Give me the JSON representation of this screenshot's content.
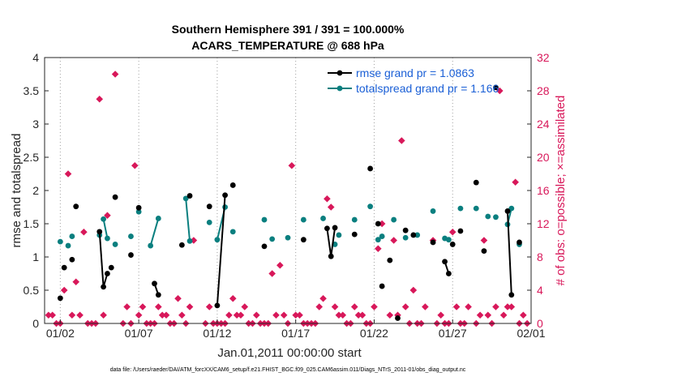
{
  "chart_data": {
    "type": "line",
    "title_line1": "Southern Hemisphere 391 / 391 = 100.000%",
    "title_line2": "ACARS_TEMPERATURE @ 688 hPa",
    "xlabel": "Jan.01,2011 00:00:00 start",
    "ylabel_left": "rmse and totalspread",
    "ylabel_right": "# of obs: o=possible; ×=assimilated",
    "footer": "data file: /Users/raeder/DAI/ATM_forcXX/CAM6_setup/f.e21.FHIST_BGC.f09_025.CAM6assim.011/Diags_NTrS_2011-01/obs_diag_output.nc",
    "xlim": [
      1,
      32
    ],
    "ylim_left": [
      0,
      4
    ],
    "ylim_right": [
      0,
      32
    ],
    "xticks": [
      2,
      7,
      12,
      17,
      22,
      27,
      32
    ],
    "xtick_labels": [
      "01/02",
      "01/07",
      "01/12",
      "01/17",
      "01/22",
      "01/27",
      "02/01"
    ],
    "yticks_left": [
      0,
      0.5,
      1,
      1.5,
      2,
      2.5,
      3,
      3.5,
      4
    ],
    "ytick_labels_left": [
      "0",
      "0.5",
      "1",
      "1.5",
      "2",
      "2.5",
      "3",
      "3.5",
      "4"
    ],
    "yticks_right": [
      0,
      4,
      8,
      12,
      16,
      20,
      24,
      28,
      32
    ],
    "ytick_labels_right": [
      "0",
      "4",
      "8",
      "12",
      "16",
      "20",
      "24",
      "28",
      "32"
    ],
    "colors": {
      "rmse": "#000000",
      "spread": "#0a7f7f",
      "obs": "#d8185a",
      "legend_text": "#1a5fd6"
    },
    "series": [
      {
        "name": "rmse grand pr = 1.0863",
        "points": [
          [
            2.0,
            0.38
          ],
          [
            2.25,
            0.84
          ],
          [
            2.75,
            0.96
          ],
          [
            3.0,
            1.76
          ],
          [
            4.5,
            1.38
          ],
          [
            4.75,
            0.55
          ],
          [
            5.0,
            0.75
          ],
          [
            5.25,
            0.84
          ],
          [
            5.5,
            1.9
          ],
          [
            6.5,
            1.03
          ],
          [
            7.0,
            1.74
          ],
          [
            8.0,
            0.6
          ],
          [
            8.25,
            0.43
          ],
          [
            9.75,
            1.18
          ],
          [
            10.25,
            1.92
          ],
          [
            11.5,
            1.76
          ],
          [
            12.0,
            0.27
          ],
          [
            12.5,
            1.93
          ],
          [
            13.0,
            2.08
          ],
          [
            15.0,
            1.16
          ],
          [
            17.5,
            1.26
          ],
          [
            19.0,
            1.43
          ],
          [
            19.25,
            1.01
          ],
          [
            19.5,
            1.44
          ],
          [
            20.75,
            1.34
          ],
          [
            21.75,
            2.33
          ],
          [
            22.25,
            1.5
          ],
          [
            22.5,
            0.56
          ],
          [
            23.0,
            0.95
          ],
          [
            23.5,
            0.08
          ],
          [
            24.0,
            1.4
          ],
          [
            24.5,
            1.33
          ],
          [
            25.75,
            1.22
          ],
          [
            26.5,
            0.93
          ],
          [
            26.75,
            0.75
          ],
          [
            27.0,
            1.19
          ],
          [
            27.5,
            1.39
          ],
          [
            28.5,
            2.12
          ],
          [
            29.0,
            1.09
          ],
          [
            29.75,
            3.55
          ],
          [
            30.5,
            1.69
          ],
          [
            30.75,
            0.43
          ],
          [
            31.25,
            1.22
          ]
        ],
        "segments": [
          [
            4.5,
            4.75
          ],
          [
            4.75,
            5.0
          ],
          [
            7.0,
            7.0
          ],
          [
            8.0,
            8.25
          ],
          [
            10.25,
            10.25
          ],
          [
            12.0,
            12.5
          ],
          [
            19.0,
            19.25
          ],
          [
            19.25,
            19.5
          ],
          [
            26.5,
            26.75
          ],
          [
            30.5,
            30.75
          ]
        ]
      },
      {
        "name": "totalspread grand pr = 1.166",
        "points": [
          [
            2.0,
            1.23
          ],
          [
            2.5,
            1.17
          ],
          [
            2.75,
            1.31
          ],
          [
            4.5,
            1.33
          ],
          [
            4.75,
            1.57
          ],
          [
            5.0,
            1.28
          ],
          [
            5.5,
            1.19
          ],
          [
            6.5,
            1.31
          ],
          [
            7.0,
            1.68
          ],
          [
            7.75,
            1.17
          ],
          [
            8.25,
            1.58
          ],
          [
            10.0,
            1.88
          ],
          [
            10.25,
            1.24
          ],
          [
            11.5,
            1.52
          ],
          [
            12.0,
            1.26
          ],
          [
            12.5,
            1.75
          ],
          [
            13.0,
            1.38
          ],
          [
            15.0,
            1.56
          ],
          [
            15.5,
            1.27
          ],
          [
            16.5,
            1.29
          ],
          [
            17.5,
            1.56
          ],
          [
            18.75,
            1.58
          ],
          [
            19.5,
            1.19
          ],
          [
            19.75,
            1.33
          ],
          [
            20.75,
            1.56
          ],
          [
            21.75,
            1.76
          ],
          [
            22.25,
            1.26
          ],
          [
            22.5,
            1.31
          ],
          [
            23.25,
            1.56
          ],
          [
            24.0,
            1.29
          ],
          [
            24.75,
            1.33
          ],
          [
            25.75,
            1.69
          ],
          [
            26.5,
            1.28
          ],
          [
            26.75,
            1.26
          ],
          [
            27.5,
            1.73
          ],
          [
            28.5,
            1.73
          ],
          [
            29.25,
            1.61
          ],
          [
            29.75,
            1.6
          ],
          [
            30.5,
            1.49
          ],
          [
            30.75,
            1.73
          ],
          [
            31.25,
            1.19
          ]
        ],
        "segments": [
          [
            4.75,
            5.0
          ],
          [
            7.75,
            8.25
          ],
          [
            10.0,
            10.25
          ],
          [
            12.5,
            12.0
          ],
          [
            30.5,
            30.75
          ]
        ]
      },
      {
        "name": "# of obs",
        "axis": "right",
        "points": [
          [
            1.25,
            1
          ],
          [
            1.5,
            1
          ],
          [
            1.75,
            0
          ],
          [
            2.0,
            0
          ],
          [
            2.25,
            4
          ],
          [
            2.5,
            18
          ],
          [
            2.75,
            1
          ],
          [
            3.0,
            5
          ],
          [
            3.25,
            1
          ],
          [
            3.5,
            11
          ],
          [
            3.75,
            0
          ],
          [
            4.0,
            0
          ],
          [
            4.25,
            0
          ],
          [
            4.5,
            27
          ],
          [
            4.75,
            1
          ],
          [
            5.0,
            13
          ],
          [
            5.5,
            30
          ],
          [
            6.0,
            0
          ],
          [
            6.25,
            2
          ],
          [
            6.5,
            0
          ],
          [
            6.75,
            19
          ],
          [
            7.0,
            1
          ],
          [
            7.25,
            2
          ],
          [
            7.5,
            0
          ],
          [
            7.75,
            0
          ],
          [
            8.0,
            0
          ],
          [
            8.25,
            2
          ],
          [
            8.5,
            1
          ],
          [
            8.75,
            1
          ],
          [
            9.0,
            0
          ],
          [
            9.25,
            0
          ],
          [
            9.5,
            3
          ],
          [
            9.75,
            1
          ],
          [
            10.0,
            0
          ],
          [
            10.25,
            2
          ],
          [
            10.5,
            10
          ],
          [
            11.25,
            0
          ],
          [
            11.5,
            2
          ],
          [
            11.75,
            0
          ],
          [
            12.0,
            0
          ],
          [
            12.25,
            0
          ],
          [
            12.5,
            0
          ],
          [
            12.75,
            1
          ],
          [
            13.0,
            3
          ],
          [
            13.25,
            1
          ],
          [
            13.5,
            1
          ],
          [
            13.75,
            2
          ],
          [
            14.0,
            0
          ],
          [
            14.25,
            0
          ],
          [
            14.5,
            1
          ],
          [
            14.75,
            0
          ],
          [
            15.0,
            0
          ],
          [
            15.25,
            0
          ],
          [
            15.5,
            6
          ],
          [
            15.75,
            1
          ],
          [
            16.0,
            7
          ],
          [
            16.25,
            1
          ],
          [
            16.5,
            0
          ],
          [
            16.75,
            19
          ],
          [
            17.0,
            1
          ],
          [
            17.25,
            1
          ],
          [
            17.5,
            0
          ],
          [
            17.75,
            0
          ],
          [
            18.0,
            0
          ],
          [
            18.25,
            0
          ],
          [
            18.5,
            2
          ],
          [
            18.75,
            3
          ],
          [
            19.0,
            15
          ],
          [
            19.25,
            14
          ],
          [
            19.5,
            2
          ],
          [
            19.75,
            1
          ],
          [
            20.0,
            1
          ],
          [
            20.25,
            0
          ],
          [
            20.5,
            0
          ],
          [
            20.75,
            2
          ],
          [
            21.0,
            1
          ],
          [
            21.25,
            1
          ],
          [
            21.5,
            0
          ],
          [
            21.75,
            0
          ],
          [
            22.0,
            2
          ],
          [
            22.25,
            9
          ],
          [
            22.5,
            12
          ],
          [
            23.0,
            1
          ],
          [
            23.25,
            10
          ],
          [
            23.5,
            1
          ],
          [
            23.75,
            22
          ],
          [
            24.0,
            2
          ],
          [
            24.25,
            0
          ],
          [
            24.5,
            4
          ],
          [
            24.75,
            0
          ],
          [
            25.0,
            0
          ],
          [
            25.25,
            2
          ],
          [
            25.75,
            10
          ],
          [
            26.0,
            0
          ],
          [
            26.25,
            1
          ],
          [
            26.5,
            0
          ],
          [
            26.75,
            0
          ],
          [
            27.0,
            11
          ],
          [
            27.25,
            2
          ],
          [
            27.5,
            0
          ],
          [
            27.75,
            0
          ],
          [
            28.0,
            2
          ],
          [
            28.5,
            0
          ],
          [
            28.75,
            1
          ],
          [
            29.0,
            10
          ],
          [
            29.25,
            1
          ],
          [
            29.5,
            0
          ],
          [
            29.75,
            2
          ],
          [
            30.0,
            28
          ],
          [
            30.25,
            1
          ],
          [
            30.5,
            2
          ],
          [
            30.75,
            2
          ],
          [
            31.0,
            17
          ],
          [
            31.25,
            0
          ],
          [
            31.5,
            1
          ],
          [
            31.75,
            0
          ]
        ]
      }
    ],
    "legend_location": "top-right"
  }
}
